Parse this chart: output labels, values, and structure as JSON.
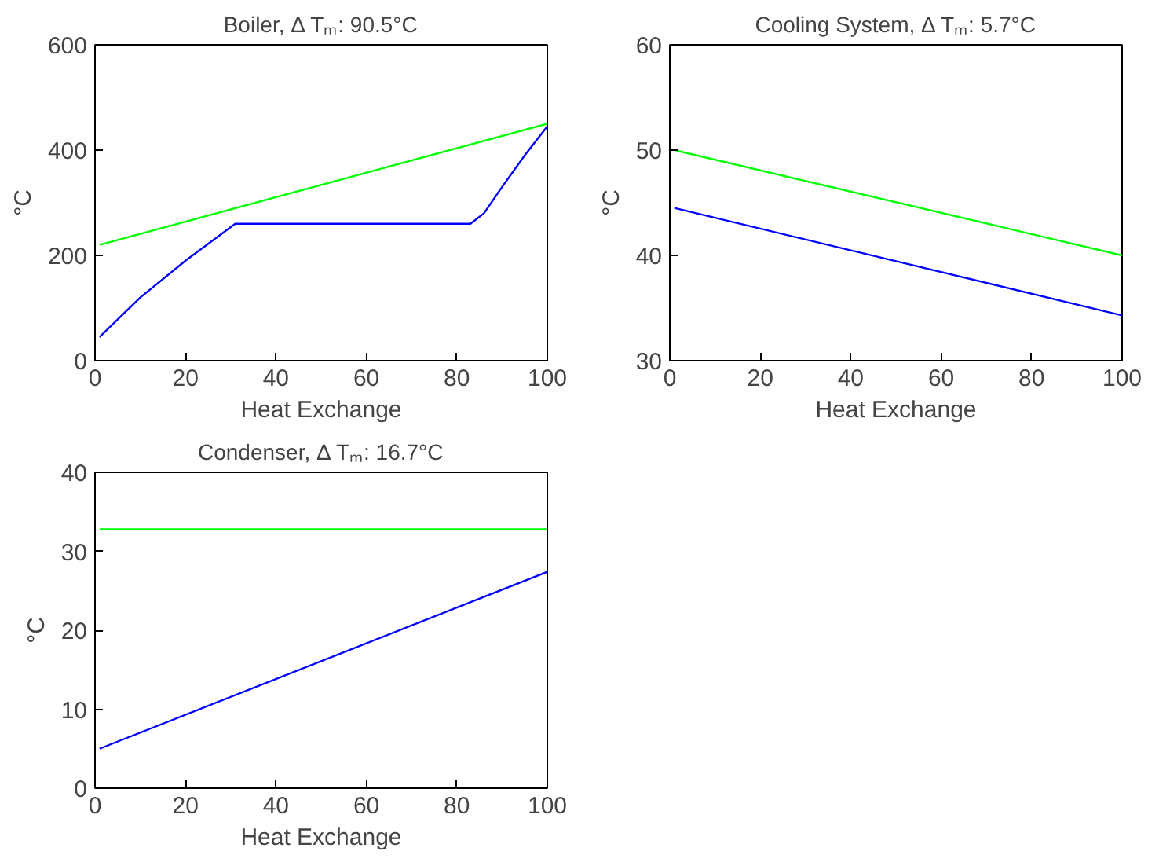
{
  "chart_data": [
    {
      "type": "line",
      "title": "Boiler, Δ Tₘ: 90.5°C",
      "xlabel": "Heat Exchange",
      "ylabel": "°C",
      "xlim": [
        0,
        100
      ],
      "ylim": [
        0,
        600
      ],
      "xticks": [
        0,
        20,
        40,
        60,
        80,
        100
      ],
      "yticks": [
        0,
        200,
        400,
        600
      ],
      "series": [
        {
          "color": "#00ff00",
          "x": [
            1,
            100
          ],
          "values": [
            220,
            450
          ]
        },
        {
          "color": "#0000ff",
          "x": [
            1,
            10,
            20,
            31,
            83,
            86,
            90,
            95,
            100
          ],
          "values": [
            45,
            120,
            190,
            260,
            260,
            280,
            330,
            390,
            445
          ]
        }
      ]
    },
    {
      "type": "line",
      "title": "Cooling System, Δ Tₘ: 5.7°C",
      "xlabel": "Heat Exchange",
      "ylabel": "°C",
      "xlim": [
        0,
        100
      ],
      "ylim": [
        30,
        60
      ],
      "xticks": [
        0,
        20,
        40,
        60,
        80,
        100
      ],
      "yticks": [
        30,
        40,
        50,
        60
      ],
      "series": [
        {
          "color": "#00ff00",
          "x": [
            1,
            100
          ],
          "values": [
            50,
            40
          ]
        },
        {
          "color": "#0000ff",
          "x": [
            1,
            100
          ],
          "values": [
            44.5,
            34.3
          ]
        }
      ]
    },
    {
      "type": "line",
      "title": "Condenser, Δ Tₘ: 16.7°C",
      "xlabel": "Heat Exchange",
      "ylabel": "°C",
      "xlim": [
        0,
        100
      ],
      "ylim": [
        0,
        40
      ],
      "xticks": [
        0,
        20,
        40,
        60,
        80,
        100
      ],
      "yticks": [
        0,
        10,
        20,
        30,
        40
      ],
      "series": [
        {
          "color": "#00ff00",
          "x": [
            1,
            100
          ],
          "values": [
            32.8,
            32.8
          ]
        },
        {
          "color": "#0000ff",
          "x": [
            1,
            100
          ],
          "values": [
            5,
            27.4
          ]
        }
      ]
    }
  ]
}
